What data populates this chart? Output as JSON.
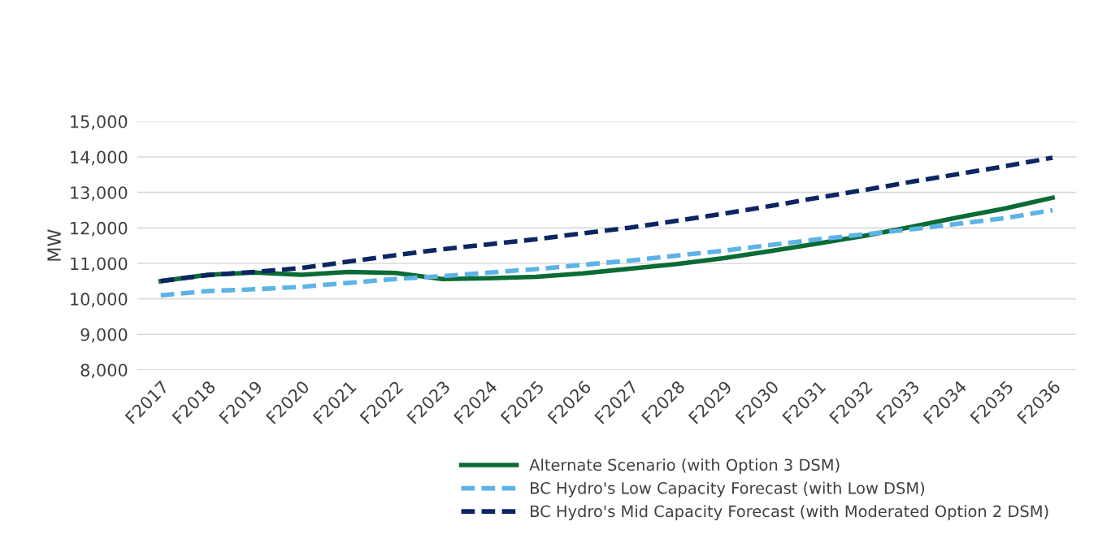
{
  "chart_data": {
    "type": "line",
    "ylabel": "MW",
    "categories": [
      "F2017",
      "F2018",
      "F2019",
      "F2020",
      "F2021",
      "F2022",
      "F2023",
      "F2024",
      "F2025",
      "F2026",
      "F2027",
      "F2028",
      "F2029",
      "F2030",
      "F2031",
      "F2032",
      "F2033",
      "F2034",
      "F2035",
      "F2036"
    ],
    "series": [
      {
        "name": "Alternate Scenario (with Option 3 DSM)",
        "color": "#0b6b35",
        "line_style": "solid",
        "values": [
          10500,
          10680,
          10740,
          10680,
          10760,
          10730,
          10560,
          10580,
          10620,
          10720,
          10850,
          10980,
          11150,
          11350,
          11560,
          11780,
          12030,
          12300,
          12550,
          12850
        ]
      },
      {
        "name": "BC Hydro's Low Capacity Forecast (with Low DSM)",
        "color": "#5db3e6",
        "line_style": "dashed",
        "values": [
          10100,
          10220,
          10270,
          10340,
          10450,
          10560,
          10640,
          10740,
          10840,
          10960,
          11080,
          11220,
          11360,
          11520,
          11680,
          11820,
          11960,
          12120,
          12280,
          12500
        ]
      },
      {
        "name": "BC Hydro's Mid Capacity Forecast (with Moderated Option 2 DSM)",
        "color": "#0d2563",
        "line_style": "dashed",
        "values": [
          10500,
          10670,
          10760,
          10870,
          11050,
          11230,
          11400,
          11540,
          11680,
          11850,
          12010,
          12200,
          12400,
          12620,
          12850,
          13070,
          13300,
          13520,
          13740,
          13980
        ]
      }
    ],
    "ylim": [
      8000,
      15000
    ],
    "yticks": [
      {
        "value": 8000,
        "label": "8,000"
      },
      {
        "value": 9000,
        "label": "9,000"
      },
      {
        "value": 10000,
        "label": "10,000"
      },
      {
        "value": 11000,
        "label": "11,000"
      },
      {
        "value": 12000,
        "label": "12,000"
      },
      {
        "value": 13000,
        "label": "13,000"
      },
      {
        "value": 14000,
        "label": "14,000"
      },
      {
        "value": 15000,
        "label": "15,000"
      }
    ],
    "grid": "y",
    "legend": "bottom",
    "marker": "none"
  }
}
